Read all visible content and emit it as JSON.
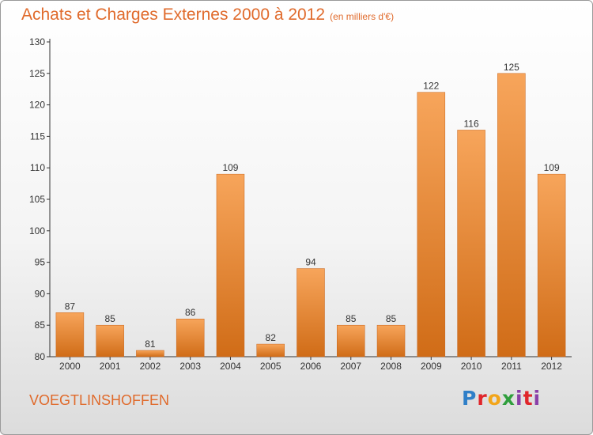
{
  "title": "Achats et Charges Externes 2000 à 2012",
  "subtitle": "(en milliers d'€)",
  "commune": "VOEGTLINSHOFFEN",
  "logo": "Proxiti",
  "colors": {
    "accent": "#e06a2b",
    "bar_top": "#f7a55b",
    "bar_bottom": "#d06c17"
  },
  "chart_data": {
    "type": "bar",
    "categories": [
      "2000",
      "2001",
      "2002",
      "2003",
      "2004",
      "2005",
      "2006",
      "2007",
      "2008",
      "2009",
      "2010",
      "2011",
      "2012"
    ],
    "values": [
      87,
      85,
      81,
      86,
      109,
      82,
      94,
      85,
      85,
      122,
      116,
      125,
      109
    ],
    "ylim": [
      80,
      130
    ],
    "yticks": [
      80,
      85,
      90,
      95,
      100,
      105,
      110,
      115,
      120,
      125,
      130
    ],
    "grid": false,
    "data_labels": true
  }
}
